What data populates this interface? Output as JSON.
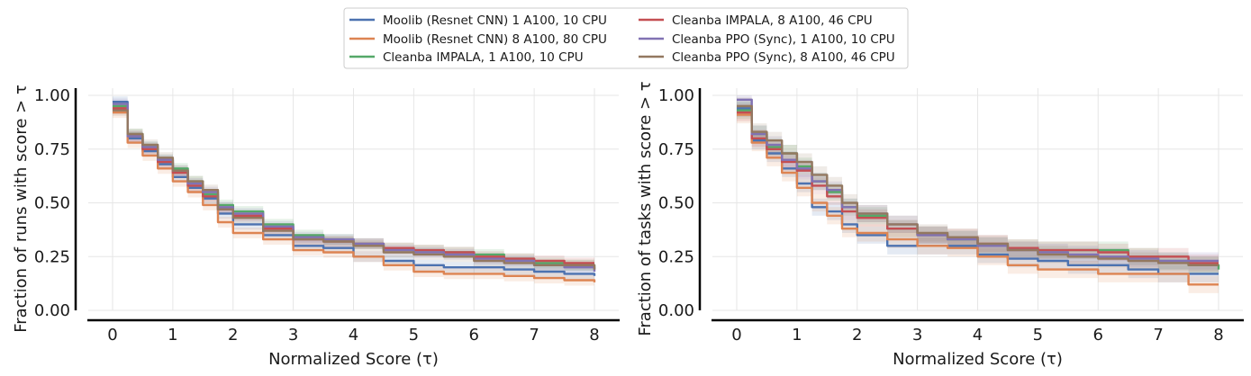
{
  "chart_data": [
    {
      "type": "line",
      "title": "",
      "xlabel": "Normalized Score (τ)",
      "ylabel": "Fraction of runs with score > τ",
      "xlim": [
        0,
        8
      ],
      "ylim": [
        0,
        1
      ],
      "xticks": [
        "0",
        "1",
        "2",
        "3",
        "4",
        "5",
        "6",
        "7",
        "8"
      ],
      "yticks": [
        "0.00",
        "0.25",
        "0.50",
        "0.75",
        "1.00"
      ],
      "grid": true,
      "band": 0.025,
      "x": [
        0,
        0.25,
        0.5,
        0.75,
        1.0,
        1.25,
        1.5,
        1.75,
        2.0,
        2.5,
        3.0,
        3.5,
        4.0,
        4.5,
        5.0,
        5.5,
        6.0,
        6.5,
        7.0,
        7.5,
        8.0
      ],
      "series": [
        {
          "name": "Moolib (Resnet CNN) 1 A100, 10 CPU",
          "color": "#4c72b0",
          "values": [
            0.97,
            0.8,
            0.74,
            0.68,
            0.62,
            0.57,
            0.52,
            0.45,
            0.4,
            0.35,
            0.3,
            0.29,
            0.25,
            0.23,
            0.21,
            0.2,
            0.2,
            0.19,
            0.18,
            0.17,
            0.16
          ]
        },
        {
          "name": "Moolib (Resnet CNN) 8 A100, 80 CPU",
          "color": "#dd8452",
          "values": [
            0.92,
            0.78,
            0.72,
            0.66,
            0.6,
            0.55,
            0.49,
            0.41,
            0.36,
            0.33,
            0.28,
            0.27,
            0.25,
            0.21,
            0.18,
            0.17,
            0.17,
            0.16,
            0.15,
            0.14,
            0.13
          ]
        },
        {
          "name": "Cleanba IMPALA, 1 A100, 10 CPU",
          "color": "#55a868",
          "values": [
            0.95,
            0.82,
            0.76,
            0.7,
            0.66,
            0.6,
            0.54,
            0.49,
            0.46,
            0.4,
            0.35,
            0.33,
            0.31,
            0.29,
            0.28,
            0.27,
            0.26,
            0.24,
            0.22,
            0.21,
            0.19
          ]
        },
        {
          "name": "Cleanba IMPALA, 8 A100, 46 CPU",
          "color": "#c44e52",
          "values": [
            0.94,
            0.81,
            0.75,
            0.69,
            0.64,
            0.58,
            0.53,
            0.47,
            0.44,
            0.38,
            0.33,
            0.32,
            0.31,
            0.29,
            0.28,
            0.27,
            0.25,
            0.24,
            0.23,
            0.22,
            0.22
          ]
        },
        {
          "name": "Cleanba PPO (Sync), 1 A100, 10 CPU",
          "color": "#8172b3",
          "values": [
            0.96,
            0.81,
            0.76,
            0.7,
            0.65,
            0.59,
            0.55,
            0.48,
            0.45,
            0.39,
            0.34,
            0.33,
            0.31,
            0.28,
            0.27,
            0.26,
            0.24,
            0.23,
            0.21,
            0.2,
            0.18
          ]
        },
        {
          "name": "Cleanba PPO (Sync), 8 A100, 46 CPU",
          "color": "#937860",
          "values": [
            0.93,
            0.82,
            0.77,
            0.71,
            0.65,
            0.6,
            0.56,
            0.47,
            0.43,
            0.37,
            0.33,
            0.32,
            0.3,
            0.27,
            0.26,
            0.25,
            0.23,
            0.22,
            0.21,
            0.21,
            0.19
          ]
        }
      ]
    },
    {
      "type": "line",
      "title": "",
      "xlabel": "Normalized Score (τ)",
      "ylabel": "Fraction of tasks with score > τ",
      "xlim": [
        0,
        8
      ],
      "ylim": [
        0,
        1
      ],
      "xticks": [
        "0",
        "1",
        "2",
        "3",
        "4",
        "5",
        "6",
        "7",
        "8"
      ],
      "yticks": [
        "0.00",
        "0.25",
        "0.50",
        "0.75",
        "1.00"
      ],
      "grid": true,
      "band": 0.04,
      "x": [
        0,
        0.25,
        0.5,
        0.75,
        1.0,
        1.25,
        1.5,
        1.75,
        2.0,
        2.5,
        3.0,
        3.5,
        4.0,
        4.5,
        5.0,
        5.5,
        6.0,
        6.5,
        7.0,
        7.5,
        8.0
      ],
      "series": [
        {
          "name": "Moolib (Resnet CNN) 1 A100, 10 CPU",
          "color": "#4c72b0",
          "values": [
            0.94,
            0.79,
            0.73,
            0.66,
            0.59,
            0.48,
            0.46,
            0.4,
            0.35,
            0.3,
            0.3,
            0.3,
            0.26,
            0.24,
            0.23,
            0.21,
            0.21,
            0.19,
            0.17,
            0.17,
            0.17
          ]
        },
        {
          "name": "Moolib (Resnet CNN) 8 A100, 80 CPU",
          "color": "#dd8452",
          "values": [
            0.91,
            0.78,
            0.71,
            0.64,
            0.57,
            0.5,
            0.44,
            0.38,
            0.36,
            0.33,
            0.3,
            0.29,
            0.25,
            0.21,
            0.19,
            0.19,
            0.17,
            0.17,
            0.17,
            0.12,
            0.12
          ]
        },
        {
          "name": "Cleanba IMPALA, 1 A100, 10 CPU",
          "color": "#55a868",
          "values": [
            0.93,
            0.82,
            0.76,
            0.73,
            0.67,
            0.6,
            0.55,
            0.48,
            0.44,
            0.38,
            0.35,
            0.33,
            0.3,
            0.29,
            0.28,
            0.28,
            0.28,
            0.25,
            0.23,
            0.21,
            0.19
          ]
        },
        {
          "name": "Cleanba IMPALA, 8 A100, 46 CPU",
          "color": "#c44e52",
          "values": [
            0.92,
            0.8,
            0.75,
            0.69,
            0.65,
            0.58,
            0.53,
            0.46,
            0.43,
            0.38,
            0.35,
            0.34,
            0.31,
            0.29,
            0.28,
            0.28,
            0.27,
            0.25,
            0.25,
            0.22,
            0.22
          ]
        },
        {
          "name": "Cleanba PPO (Sync), 1 A100, 10 CPU",
          "color": "#8172b3",
          "values": [
            0.98,
            0.82,
            0.77,
            0.7,
            0.66,
            0.6,
            0.56,
            0.48,
            0.45,
            0.4,
            0.35,
            0.33,
            0.3,
            0.28,
            0.27,
            0.26,
            0.25,
            0.24,
            0.23,
            0.23,
            0.23
          ]
        },
        {
          "name": "Cleanba PPO (Sync), 8 A100, 46 CPU",
          "color": "#937860",
          "values": [
            0.95,
            0.83,
            0.79,
            0.73,
            0.69,
            0.63,
            0.58,
            0.5,
            0.45,
            0.4,
            0.36,
            0.34,
            0.31,
            0.28,
            0.26,
            0.25,
            0.24,
            0.23,
            0.22,
            0.21,
            0.21
          ]
        }
      ]
    }
  ],
  "legend": {
    "placement": "top-center",
    "columns": 2,
    "items": [
      {
        "label": "Moolib (Resnet CNN) 1 A100, 10 CPU",
        "color": "#4c72b0"
      },
      {
        "label": "Moolib (Resnet CNN) 8 A100, 80 CPU",
        "color": "#dd8452"
      },
      {
        "label": "Cleanba IMPALA, 1 A100, 10 CPU",
        "color": "#55a868"
      },
      {
        "label": "Cleanba IMPALA, 8 A100, 46 CPU",
        "color": "#c44e52"
      },
      {
        "label": "Cleanba PPO (Sync), 1 A100, 10 CPU",
        "color": "#8172b3"
      },
      {
        "label": "Cleanba PPO (Sync), 8 A100, 46 CPU",
        "color": "#937860"
      }
    ]
  }
}
